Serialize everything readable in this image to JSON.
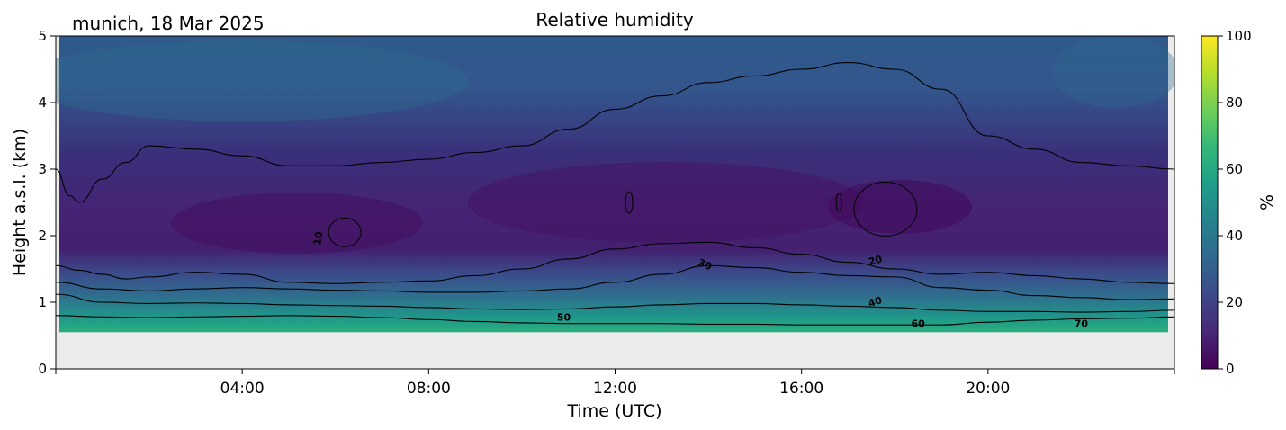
{
  "chart_data": {
    "type": "heatmap",
    "location_label": "munich, 18 Mar 2025",
    "title": "Relative humidity",
    "xlabel": "Time (UTC)",
    "ylabel": "Height a.s.l. (km)",
    "xlim_hours": [
      0,
      24
    ],
    "ylim_km": [
      0,
      5
    ],
    "x_ticks": [
      "04:00",
      "08:00",
      "12:00",
      "16:00",
      "20:00"
    ],
    "x_tick_hours": [
      4,
      8,
      12,
      16,
      20
    ],
    "y_ticks": [
      0,
      1,
      2,
      3,
      4,
      5
    ],
    "data_min_height_km": 0.55,
    "colorbar": {
      "label": "%",
      "range": [
        0,
        100
      ],
      "ticks": [
        0,
        20,
        40,
        60,
        80,
        100
      ],
      "colormap": [
        "#440154",
        "#482878",
        "#3e4989",
        "#31688e",
        "#26828e",
        "#1f9e89",
        "#35b779",
        "#6ece58",
        "#b5de2b",
        "#fde725"
      ]
    },
    "no_data_color": "#ebebeb",
    "contour_levels": [
      10,
      20,
      30,
      40,
      50,
      60,
      70
    ],
    "contour_line_labels": [
      {
        "text": "10",
        "hour": 5.7,
        "km": 1.95,
        "rot": -80
      },
      {
        "text": "30",
        "hour": 13.9,
        "km": 1.52,
        "rot": 22
      },
      {
        "text": "20",
        "hour": 17.6,
        "km": 1.58,
        "rot": -15
      },
      {
        "text": "40",
        "hour": 17.6,
        "km": 0.96,
        "rot": -18
      },
      {
        "text": "50",
        "hour": 10.9,
        "km": 0.72,
        "rot": 0
      },
      {
        "text": "60",
        "hour": 18.5,
        "km": 0.63,
        "rot": 0
      },
      {
        "text": "70",
        "hour": 22.0,
        "km": 0.63,
        "rot": 0
      }
    ],
    "contours": [
      {
        "level": 50,
        "hours": [
          0,
          1,
          2,
          3,
          4,
          5,
          6,
          7,
          8,
          9,
          10,
          11,
          12,
          13,
          14,
          15,
          16,
          17,
          18,
          19,
          20,
          21,
          22,
          23,
          24
        ],
        "km": [
          0.8,
          0.78,
          0.77,
          0.78,
          0.79,
          0.8,
          0.79,
          0.77,
          0.74,
          0.71,
          0.69,
          0.68,
          0.68,
          0.68,
          0.67,
          0.67,
          0.66,
          0.66,
          0.66,
          0.66,
          0.7,
          0.73,
          0.75,
          0.76,
          0.78
        ]
      },
      {
        "level": 40,
        "hours": [
          0,
          1,
          2,
          3,
          4,
          5,
          6,
          7,
          8,
          9,
          10,
          11,
          12,
          13,
          14,
          15,
          16,
          17,
          18,
          19,
          20,
          21,
          22,
          23,
          24
        ],
        "km": [
          1.12,
          1.0,
          0.98,
          0.99,
          0.98,
          0.96,
          0.95,
          0.94,
          0.92,
          0.9,
          0.89,
          0.9,
          0.93,
          0.96,
          0.98,
          0.98,
          0.96,
          0.94,
          0.92,
          0.88,
          0.86,
          0.86,
          0.85,
          0.86,
          0.88
        ]
      },
      {
        "level": 30,
        "hours": [
          0,
          1,
          2,
          3,
          4,
          5,
          6,
          7,
          8,
          9,
          10,
          11,
          12,
          13,
          14,
          15,
          16,
          17,
          18,
          19,
          20,
          21,
          22,
          23,
          24
        ],
        "km": [
          1.3,
          1.2,
          1.17,
          1.2,
          1.22,
          1.2,
          1.18,
          1.17,
          1.15,
          1.15,
          1.17,
          1.2,
          1.3,
          1.42,
          1.55,
          1.52,
          1.45,
          1.4,
          1.38,
          1.22,
          1.18,
          1.1,
          1.07,
          1.04,
          1.05
        ]
      },
      {
        "level": 20,
        "hours": [
          0,
          0.5,
          1,
          1.5,
          2,
          3,
          4,
          5,
          6,
          7,
          8,
          9,
          10,
          11,
          12,
          13,
          14,
          15,
          16,
          17,
          18,
          19,
          20,
          21,
          22,
          23,
          24
        ],
        "km": [
          1.55,
          1.48,
          1.42,
          1.35,
          1.38,
          1.45,
          1.42,
          1.3,
          1.28,
          1.3,
          1.32,
          1.4,
          1.5,
          1.65,
          1.8,
          1.88,
          1.9,
          1.82,
          1.72,
          1.6,
          1.5,
          1.42,
          1.45,
          1.4,
          1.35,
          1.3,
          1.28
        ]
      },
      {
        "level": 10,
        "hours": [
          0,
          0.3,
          0.5,
          1,
          1.5,
          2,
          3,
          4,
          5,
          6,
          7,
          8,
          9,
          10,
          11,
          12,
          13,
          14,
          15,
          16,
          17,
          18,
          19,
          20,
          21,
          22,
          23,
          24
        ],
        "km": [
          3.0,
          2.6,
          2.5,
          2.85,
          3.1,
          3.35,
          3.3,
          3.2,
          3.05,
          3.05,
          3.1,
          3.15,
          3.25,
          3.35,
          3.6,
          3.9,
          4.1,
          4.3,
          4.4,
          4.5,
          4.6,
          4.5,
          4.2,
          3.5,
          3.3,
          3.1,
          3.05,
          3.0
        ]
      }
    ]
  }
}
